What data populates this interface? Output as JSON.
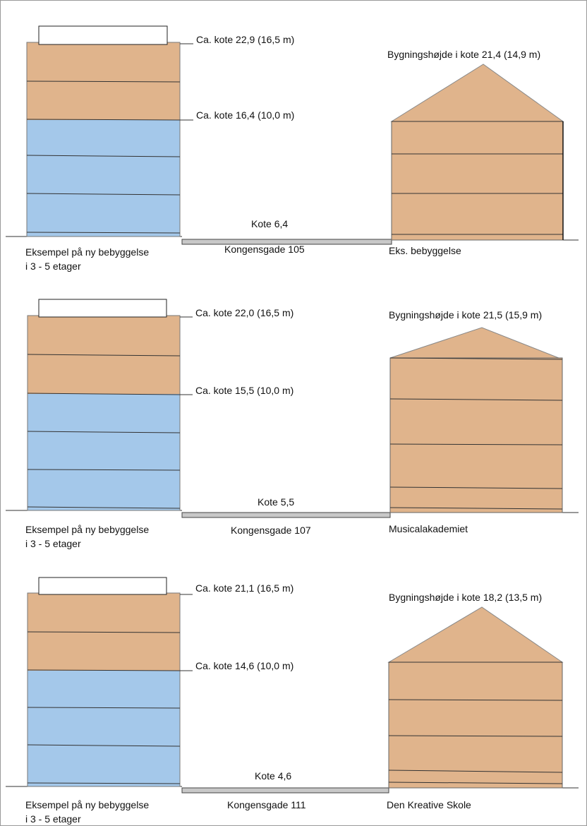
{
  "colors": {
    "upper_floors": "#e0b48c",
    "lower_floors": "#a4c8ea",
    "existing_building": "#e0b48c",
    "road": "#c8c8c8",
    "line": "#333333"
  },
  "sections": [
    {
      "new_building_top_label": "Ca. kote 22,9 (16,5 m)",
      "new_building_mid_label": "Ca. kote 16,4 (10,0 m)",
      "ground_kote_label": "Kote 6,4",
      "street_label": "Kongensgade 105",
      "new_building_caption_line1": "Eksempel på ny bebyggelse",
      "new_building_caption_line2": "i 3 - 5 etager",
      "existing_height_label": "Bygningshøjde i kote 21,4 (14,9 m)",
      "existing_caption": "Eks. bebyggelse"
    },
    {
      "new_building_top_label": "Ca. kote 22,0 (16,5 m)",
      "new_building_mid_label": "Ca. kote 15,5 (10,0 m)",
      "ground_kote_label": "Kote 5,5",
      "street_label": "Kongensgade 107",
      "new_building_caption_line1": "Eksempel på ny bebyggelse",
      "new_building_caption_line2": "i 3 - 5 etager",
      "existing_height_label": "Bygningshøjde i kote 21,5 (15,9 m)",
      "existing_caption": "Musicalakademiet"
    },
    {
      "new_building_top_label": "Ca. kote 21,1 (16,5 m)",
      "new_building_mid_label": "Ca. kote 14,6 (10,0 m)",
      "ground_kote_label": "Kote 4,6",
      "street_label": "Kongensgade 111",
      "new_building_caption_line1": "Eksempel på ny bebyggelse",
      "new_building_caption_line2": "i 3 - 5 etager",
      "existing_height_label": "Bygningshøjde i kote 18,2 (13,5 m)",
      "existing_caption": "Den Kreative Skole"
    }
  ]
}
